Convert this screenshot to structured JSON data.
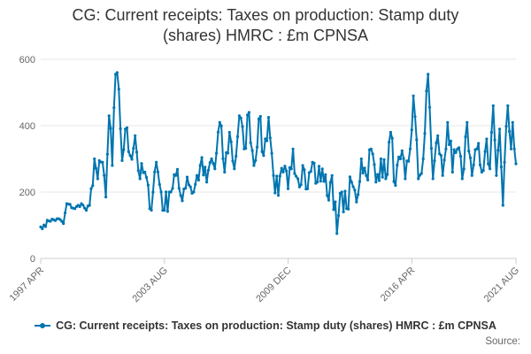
{
  "title": {
    "line1": "CG: Current receipts: Taxes on production: Stamp duty",
    "line2": "(shares) HMRC : £m CPNSA"
  },
  "legend": {
    "label": "CG: Current receipts: Taxes on production: Stamp duty (shares) HMRC : £m CPNSA"
  },
  "source": {
    "label": "Source:"
  },
  "colors": {
    "series": "#0075b0",
    "grid": "#e6e6e6",
    "axis_text": "#666666",
    "title": "#333333"
  },
  "chart_data": {
    "type": "line",
    "title": "CG: Current receipts: Taxes on production: Stamp duty (shares) HMRC : £m CPNSA",
    "xlabel": "",
    "ylabel": "",
    "ylim": [
      0,
      600
    ],
    "yticks": [
      0,
      200,
      400,
      600
    ],
    "x_tick_labels": [
      "1997 APR",
      "2003 AUG",
      "2009 DEC",
      "2016 APR",
      "2021 AUG"
    ],
    "x_range": [
      "1997 APR",
      "2021 AUG"
    ],
    "grid": true,
    "legend_position": "bottom",
    "series": [
      {
        "name": "CG: Current receipts: Taxes on production: Stamp duty (shares) HMRC : £m CPNSA",
        "frequency": "monthly",
        "start": "1997 APR",
        "end": "2021 AUG",
        "anchor_points": [
          {
            "x": "1997 APR",
            "y": 95
          },
          {
            "x": "1997 JUL",
            "y": 96
          },
          {
            "x": "1997 AUG",
            "y": 115
          },
          {
            "x": "1998 APR",
            "y": 117
          },
          {
            "x": "1998 JUN",
            "y": 105
          },
          {
            "x": "1998 AUG",
            "y": 165
          },
          {
            "x": "1999 JAN",
            "y": 150
          },
          {
            "x": "1999 MAY",
            "y": 165
          },
          {
            "x": "1999 AUG",
            "y": 145
          },
          {
            "x": "1999 OCT",
            "y": 160
          },
          {
            "x": "2000 JAN",
            "y": 300
          },
          {
            "x": "2000 MAR",
            "y": 240
          },
          {
            "x": "2000 JUN",
            "y": 290
          },
          {
            "x": "2000 AUG",
            "y": 185
          },
          {
            "x": "2000 OCT",
            "y": 430
          },
          {
            "x": "2000 DEC",
            "y": 280
          },
          {
            "x": "2001 FEB",
            "y": 555
          },
          {
            "x": "2001 MAR",
            "y": 560
          },
          {
            "x": "2001 APR",
            "y": 510
          },
          {
            "x": "2001 JUN",
            "y": 295
          },
          {
            "x": "2001 AUG",
            "y": 390
          },
          {
            "x": "2001 NOV",
            "y": 310
          },
          {
            "x": "2002 FEB",
            "y": 370
          },
          {
            "x": "2002 MAY",
            "y": 240
          },
          {
            "x": "2002 AUG",
            "y": 260
          },
          {
            "x": "2002 NOV",
            "y": 150
          },
          {
            "x": "2003 MAR",
            "y": 290
          },
          {
            "x": "2003 JUN",
            "y": 200
          },
          {
            "x": "2003 AUG",
            "y": 145
          },
          {
            "x": "2003 NOV",
            "y": 200
          },
          {
            "x": "2004 MAR",
            "y": 250
          },
          {
            "x": "2004 JUN",
            "y": 190
          },
          {
            "x": "2004 OCT",
            "y": 245
          },
          {
            "x": "2005 FEB",
            "y": 200
          },
          {
            "x": "2005 JUN",
            "y": 280
          },
          {
            "x": "2005 OCT",
            "y": 230
          },
          {
            "x": "2006 JAN",
            "y": 300
          },
          {
            "x": "2006 MAR",
            "y": 270
          },
          {
            "x": "2006 JUN",
            "y": 410
          },
          {
            "x": "2006 SEP",
            "y": 260
          },
          {
            "x": "2006 DEC",
            "y": 380
          },
          {
            "x": "2007 MAR",
            "y": 270
          },
          {
            "x": "2007 JUN",
            "y": 430
          },
          {
            "x": "2007 SEP",
            "y": 330
          },
          {
            "x": "2007 DEC",
            "y": 440
          },
          {
            "x": "2008 MAR",
            "y": 280
          },
          {
            "x": "2008 JUN",
            "y": 420
          },
          {
            "x": "2008 SEP",
            "y": 310
          },
          {
            "x": "2008 DEC",
            "y": 425
          },
          {
            "x": "2009 MAR",
            "y": 250
          },
          {
            "x": "2009 JUN",
            "y": 190
          },
          {
            "x": "2009 SEP",
            "y": 260
          },
          {
            "x": "2009 DEC",
            "y": 210
          },
          {
            "x": "2010 MAR",
            "y": 330
          },
          {
            "x": "2010 JUN",
            "y": 240
          },
          {
            "x": "2010 SEP",
            "y": 280
          },
          {
            "x": "2010 DEC",
            "y": 210
          },
          {
            "x": "2011 MAR",
            "y": 290
          },
          {
            "x": "2011 JUN",
            "y": 230
          },
          {
            "x": "2011 SEP",
            "y": 270
          },
          {
            "x": "2011 DEC",
            "y": 190
          },
          {
            "x": "2012 MAR",
            "y": 250
          },
          {
            "x": "2012 JUN",
            "y": 75
          },
          {
            "x": "2012 SEP",
            "y": 200
          },
          {
            "x": "2012 DEC",
            "y": 150
          },
          {
            "x": "2013 MAR",
            "y": 230
          },
          {
            "x": "2013 JUN",
            "y": 170
          },
          {
            "x": "2013 SEP",
            "y": 300
          },
          {
            "x": "2013 DEC",
            "y": 250
          },
          {
            "x": "2014 MAR",
            "y": 330
          },
          {
            "x": "2014 JUN",
            "y": 230
          },
          {
            "x": "2014 SEP",
            "y": 300
          },
          {
            "x": "2014 DEC",
            "y": 240
          },
          {
            "x": "2015 MAR",
            "y": 380
          },
          {
            "x": "2015 JUN",
            "y": 220
          },
          {
            "x": "2015 SEP",
            "y": 300
          },
          {
            "x": "2015 DEC",
            "y": 240
          },
          {
            "x": "2016 MAR",
            "y": 330
          },
          {
            "x": "2016 MAY",
            "y": 490
          },
          {
            "x": "2016 AUG",
            "y": 240
          },
          {
            "x": "2016 NOV",
            "y": 300
          },
          {
            "x": "2017 FEB",
            "y": 555
          },
          {
            "x": "2017 MAY",
            "y": 240
          },
          {
            "x": "2017 AUG",
            "y": 370
          },
          {
            "x": "2017 NOV",
            "y": 250
          },
          {
            "x": "2018 FEB",
            "y": 410
          },
          {
            "x": "2018 MAY",
            "y": 260
          },
          {
            "x": "2018 AUG",
            "y": 330
          },
          {
            "x": "2018 NOV",
            "y": 240
          },
          {
            "x": "2019 FEB",
            "y": 410
          },
          {
            "x": "2019 MAY",
            "y": 250
          },
          {
            "x": "2019 AUG",
            "y": 330
          },
          {
            "x": "2019 NOV",
            "y": 260
          },
          {
            "x": "2020 FEB",
            "y": 360
          },
          {
            "x": "2020 APR",
            "y": 270
          },
          {
            "x": "2020 JUN",
            "y": 460
          },
          {
            "x": "2020 AUG",
            "y": 250
          },
          {
            "x": "2020 OCT",
            "y": 390
          },
          {
            "x": "2020 DEC",
            "y": 160
          },
          {
            "x": "2021 JAN",
            "y": 290
          },
          {
            "x": "2021 MAR",
            "y": 460
          },
          {
            "x": "2021 MAY",
            "y": 330
          },
          {
            "x": "2021 JUN",
            "y": 410
          },
          {
            "x": "2021 JUL",
            "y": 330
          },
          {
            "x": "2021 AUG",
            "y": 285
          }
        ]
      }
    ]
  }
}
